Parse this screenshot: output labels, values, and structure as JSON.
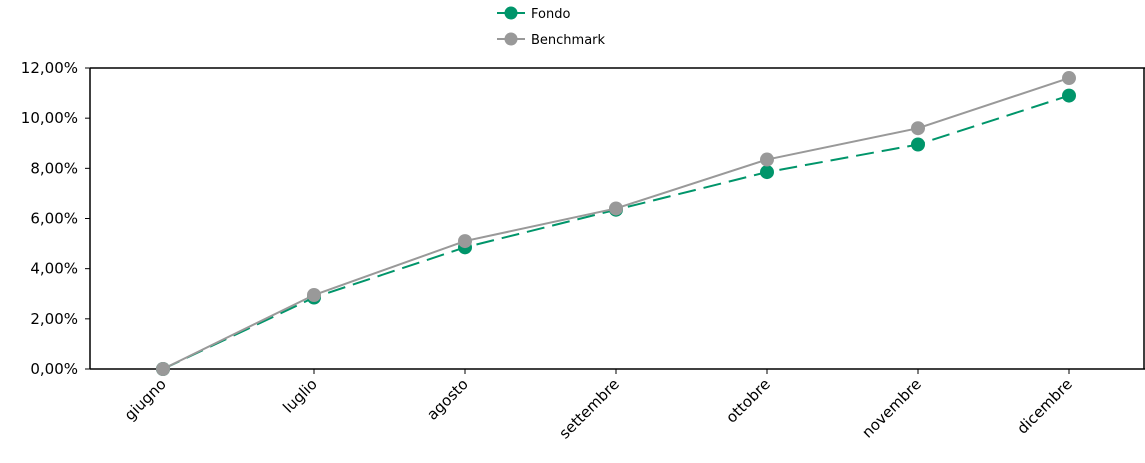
{
  "chart_data": {
    "type": "line",
    "categories": [
      "giugno",
      "luglio",
      "agosto",
      "settembre",
      "ottobre",
      "novembre",
      "dicembre"
    ],
    "series": [
      {
        "name": "Fondo",
        "values": [
          0.0,
          2.85,
          4.85,
          6.35,
          7.85,
          8.95,
          10.9
        ],
        "color": "#00956A",
        "dash": "dashed"
      },
      {
        "name": "Benchmark",
        "values": [
          0.0,
          2.95,
          5.1,
          6.4,
          8.35,
          9.6,
          11.6
        ],
        "color": "#999999",
        "dash": "solid"
      }
    ],
    "y_ticks": [
      "0,00%",
      "2,00%",
      "4,00%",
      "6,00%",
      "8,00%",
      "10,00%",
      "12,00%"
    ],
    "ylim": [
      0,
      12
    ],
    "legend_position": "top-center",
    "grid": false
  }
}
